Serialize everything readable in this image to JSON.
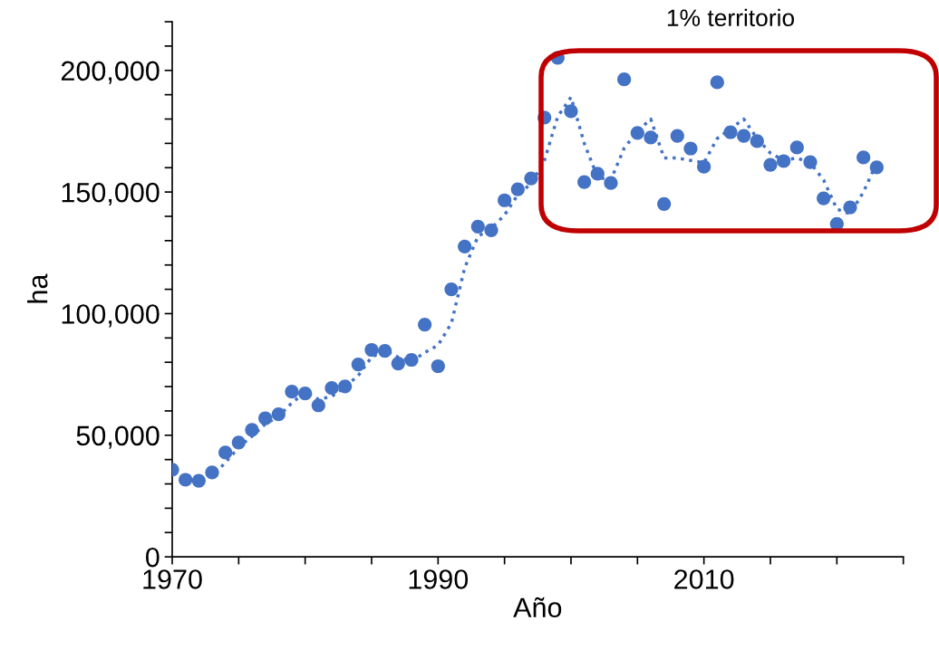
{
  "chart_data": {
    "type": "scatter",
    "xlabel": "Año",
    "ylabel": "ha",
    "annotations": [
      "1% territorio"
    ],
    "xlim": [
      1970,
      2025
    ],
    "ylim": [
      0,
      220000
    ],
    "xticks": [
      1970,
      {
        "value": 1975,
        "label": null
      },
      {
        "value": 1980,
        "label": null
      },
      {
        "value": 1985,
        "label": null
      },
      1990,
      {
        "value": 1995,
        "label": null
      },
      {
        "value": 2000,
        "label": null
      },
      {
        "value": 2005,
        "label": null
      },
      2010,
      {
        "value": 2015,
        "label": null
      },
      {
        "value": 2020,
        "label": null
      },
      {
        "value": 2025,
        "label": null
      }
    ],
    "yticks": [
      {
        "value": 0,
        "label": "0"
      },
      {
        "value": 10000,
        "label": null
      },
      {
        "value": 20000,
        "label": null
      },
      {
        "value": 30000,
        "label": null
      },
      {
        "value": 40000,
        "label": null
      },
      {
        "value": 50000,
        "label": "50,000"
      },
      {
        "value": 60000,
        "label": null
      },
      {
        "value": 70000,
        "label": null
      },
      {
        "value": 80000,
        "label": null
      },
      {
        "value": 90000,
        "label": null
      },
      {
        "value": 100000,
        "label": "100,000"
      },
      {
        "value": 110000,
        "label": null
      },
      {
        "value": 120000,
        "label": null
      },
      {
        "value": 130000,
        "label": null
      },
      {
        "value": 140000,
        "label": null
      },
      {
        "value": 150000,
        "label": "150,000"
      },
      {
        "value": 160000,
        "label": null
      },
      {
        "value": 170000,
        "label": null
      },
      {
        "value": 180000,
        "label": null
      },
      {
        "value": 190000,
        "label": null
      },
      {
        "value": 200000,
        "label": "200,000"
      },
      {
        "value": 210000,
        "label": null
      },
      {
        "value": 220000,
        "label": null
      }
    ],
    "grid": false,
    "series": [
      {
        "marker": "circle",
        "color": "#4472c4",
        "x": [
          1970,
          1971,
          1972,
          1973,
          1974,
          1975,
          1976,
          1977,
          1978,
          1979,
          1980,
          1981,
          1982,
          1983,
          1984,
          1985,
          1986,
          1987,
          1988,
          1989,
          1990,
          1991,
          1992,
          1993,
          1994,
          1995,
          1996,
          1997,
          1998,
          1999,
          2000,
          2001,
          2002,
          2003,
          2004,
          2005,
          2006,
          2007,
          2008,
          2009,
          2010,
          2011,
          2012,
          2013,
          2014,
          2015,
          2016,
          2017,
          2018,
          2019,
          2020,
          2021,
          2022,
          2023
        ],
        "values": [
          35800,
          31700,
          31300,
          34700,
          42900,
          47000,
          52200,
          57000,
          58600,
          67900,
          67200,
          62300,
          69400,
          70100,
          79100,
          85100,
          84700,
          79500,
          81000,
          95500,
          78400,
          110000,
          127600,
          135800,
          134300,
          146600,
          151100,
          155600,
          180600,
          205200,
          183200,
          154100,
          157500,
          153700,
          196300,
          174300,
          172400,
          145100,
          173100,
          167900,
          160400,
          195100,
          174600,
          173100,
          170900,
          161200,
          162700,
          168300,
          162300,
          147400,
          136900,
          143700,
          164200,
          160100
        ]
      },
      {
        "type": "line",
        "line_style": "dotted",
        "marker": "none",
        "color": "#4472c4",
        "x": [
          1971,
          1972,
          1973,
          1974,
          1975,
          1976,
          1977,
          1978,
          1979,
          1980,
          1981,
          1982,
          1983,
          1984,
          1985,
          1986,
          1987,
          1988,
          1989,
          1990,
          1991,
          1992,
          1993,
          1994,
          1995,
          1996,
          1997,
          1998,
          1999,
          2000,
          2001,
          2002,
          2003,
          2004,
          2005,
          2006,
          2007,
          2008,
          2009,
          2010,
          2011,
          2012,
          2013,
          2014,
          2015,
          2016,
          2017,
          2018,
          2019,
          2020,
          2021,
          2022,
          2023
        ],
        "values": [
          33800,
          31500,
          33000,
          38800,
          45000,
          49600,
          54600,
          57800,
          63300,
          67600,
          64800,
          65900,
          69800,
          74600,
          82100,
          84900,
          82100,
          80300,
          84000,
          87000,
          96000,
          118800,
          131700,
          135100,
          140500,
          148900,
          153400,
          163000,
          181000,
          189000,
          170000,
          156000,
          155000,
          168000,
          175000,
          180000,
          164000,
          164000,
          163000,
          162000,
          172000,
          176000,
          180000,
          172000,
          166000,
          163000,
          164000,
          162000,
          155000,
          143000,
          141000,
          150000,
          162000
        ]
      }
    ]
  }
}
